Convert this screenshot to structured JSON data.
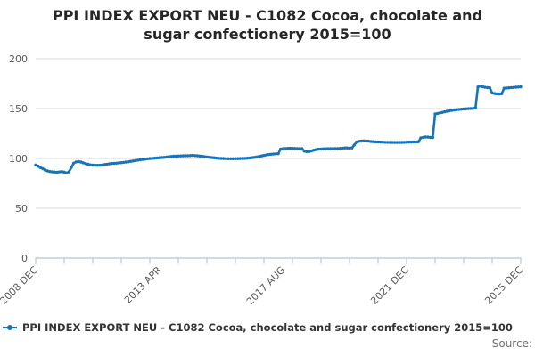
{
  "title": {
    "lines": [
      "PPI INDEX EXPORT NEU - C1082 Cocoa, chocolate and",
      "sugar confectionery 2015=100"
    ]
  },
  "legend": {
    "marker_icon": "line-with-dot-icon",
    "label": "PPI INDEX EXPORT NEU - C1082 Cocoa, chocolate and sugar confectionery 2015=100"
  },
  "footer": {
    "source_label": "Source:"
  },
  "colors": {
    "line": "#1774b8",
    "grid": "#d9d9d9",
    "axis": "#c2cce1",
    "tick_text": "#595959",
    "title_text": "#262626",
    "legend_text": "#333333",
    "source_text": "#707070"
  },
  "chart_data": {
    "type": "line",
    "title": "PPI INDEX EXPORT NEU - C1082 Cocoa, chocolate and sugar confectionery 2015=100",
    "x_start": "2008 DEC",
    "x_end": "2025 DEC",
    "frequency": "monthly",
    "n_points": 205,
    "ylim": [
      0,
      200
    ],
    "y_ticks": [
      0,
      50,
      100,
      150,
      200
    ],
    "x_tick_interval_months": 12,
    "x_labels": [
      {
        "label": "2008 DEC",
        "month_index": 0
      },
      {
        "label": "2013 APR",
        "month_index": 52
      },
      {
        "label": "2017 AUG",
        "month_index": 104
      },
      {
        "label": "2021 DEC",
        "month_index": 156
      },
      {
        "label": "2025 DEC",
        "month_index": 204
      }
    ],
    "grid": "horizontal",
    "legend_position": "bottom",
    "series": [
      {
        "name": "PPI INDEX EXPORT NEU - C1082 Cocoa, chocolate and sugar confectionery 2015=100",
        "values": [
          93.5,
          92.3,
          90.8,
          89.7,
          88.4,
          87.5,
          86.9,
          86.5,
          86.3,
          86.2,
          86.5,
          86.8,
          86.3,
          85.5,
          86.5,
          91.0,
          95.3,
          96.5,
          96.9,
          96.4,
          95.6,
          94.8,
          94.2,
          93.6,
          93.3,
          93.2,
          93.1,
          93.2,
          93.5,
          93.9,
          94.3,
          94.6,
          94.9,
          95.1,
          95.3,
          95.5,
          95.8,
          96.1,
          96.4,
          96.7,
          97.1,
          97.5,
          97.9,
          98.3,
          98.7,
          99.0,
          99.3,
          99.6,
          99.9,
          100.1,
          100.3,
          100.5,
          100.7,
          100.9,
          101.1,
          101.4,
          101.7,
          102.0,
          102.2,
          102.3,
          102.4,
          102.5,
          102.6,
          102.7,
          102.8,
          102.9,
          103.0,
          102.9,
          102.7,
          102.4,
          102.1,
          101.8,
          101.5,
          101.2,
          100.9,
          100.7,
          100.4,
          100.2,
          100.0,
          99.9,
          99.8,
          99.7,
          99.7,
          99.7,
          99.8,
          99.8,
          99.9,
          100.0,
          100.1,
          100.3,
          100.5,
          100.8,
          101.1,
          101.5,
          102.0,
          102.5,
          103.0,
          103.5,
          103.9,
          104.2,
          104.4,
          104.6,
          104.7,
          109.4,
          109.7,
          109.9,
          110.1,
          110.2,
          110.1,
          110.0,
          109.9,
          109.9,
          109.8,
          107.3,
          106.8,
          107.0,
          107.6,
          108.3,
          108.9,
          109.3,
          109.5,
          109.6,
          109.6,
          109.7,
          109.7,
          109.8,
          109.8,
          109.9,
          110.1,
          110.3,
          110.5,
          110.5,
          110.4,
          110.5,
          113.5,
          116.6,
          117.1,
          117.4,
          117.6,
          117.5,
          117.3,
          117.0,
          116.8,
          116.6,
          116.5,
          116.4,
          116.3,
          116.2,
          116.2,
          116.1,
          116.1,
          116.0,
          116.0,
          116.1,
          116.1,
          116.2,
          116.3,
          116.4,
          116.4,
          116.5,
          116.6,
          116.7,
          120.6,
          121.1,
          121.4,
          121.3,
          121.1,
          120.9,
          144.6,
          145.1,
          145.6,
          146.2,
          146.8,
          147.3,
          147.8,
          148.2,
          148.6,
          148.9,
          149.2,
          149.4,
          149.6,
          149.7,
          149.9,
          150.1,
          150.3,
          150.6,
          171.6,
          172.6,
          171.9,
          171.3,
          171.0,
          170.8,
          165.6,
          165.1,
          164.8,
          164.6,
          164.9,
          170.4,
          170.6,
          170.8,
          171.0,
          171.2,
          171.4,
          171.6,
          171.8
        ]
      }
    ]
  }
}
